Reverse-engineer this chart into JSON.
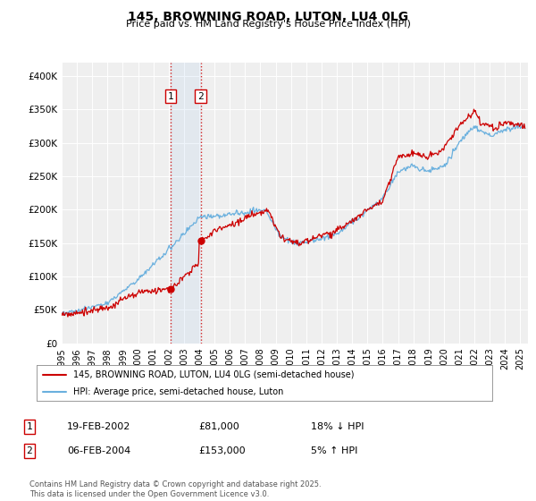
{
  "title": "145, BROWNING ROAD, LUTON, LU4 0LG",
  "subtitle": "Price paid vs. HM Land Registry's House Price Index (HPI)",
  "legend_line1": "145, BROWNING ROAD, LUTON, LU4 0LG (semi-detached house)",
  "legend_line2": "HPI: Average price, semi-detached house, Luton",
  "transaction1_date": "19-FEB-2002",
  "transaction1_price": "£81,000",
  "transaction1_hpi": "18% ↓ HPI",
  "transaction2_date": "06-FEB-2004",
  "transaction2_price": "£153,000",
  "transaction2_hpi": "5% ↑ HPI",
  "footer": "Contains HM Land Registry data © Crown copyright and database right 2025.\nThis data is licensed under the Open Government Licence v3.0.",
  "hpi_color": "#6ab0de",
  "price_color": "#cc0000",
  "transaction1_x": 2002.12,
  "transaction1_y": 81000,
  "transaction2_x": 2004.09,
  "transaction2_y": 153000,
  "vline1_x": 2002.12,
  "vline2_x": 2004.09,
  "shade_xmin": 2002.12,
  "shade_xmax": 2004.09,
  "ylim": [
    0,
    420000
  ],
  "xlim_start": 1995.0,
  "xlim_end": 2025.5,
  "yticks": [
    0,
    50000,
    100000,
    150000,
    200000,
    250000,
    300000,
    350000,
    400000
  ],
  "ytick_labels": [
    "£0",
    "£50K",
    "£100K",
    "£150K",
    "£200K",
    "£250K",
    "£300K",
    "£350K",
    "£400K"
  ],
  "xticks": [
    1995,
    1996,
    1997,
    1998,
    1999,
    2000,
    2001,
    2002,
    2003,
    2004,
    2005,
    2006,
    2007,
    2008,
    2009,
    2010,
    2011,
    2012,
    2013,
    2014,
    2015,
    2016,
    2017,
    2018,
    2019,
    2020,
    2021,
    2022,
    2023,
    2024,
    2025
  ],
  "background_color": "#ffffff",
  "plot_bg_color": "#efefef",
  "grid_color": "#ffffff"
}
